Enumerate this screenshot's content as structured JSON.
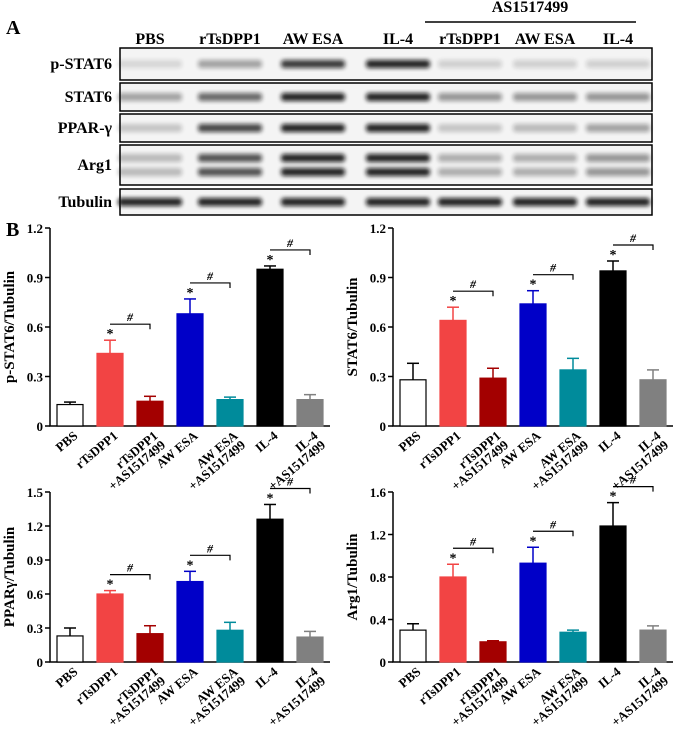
{
  "blot": {
    "panel_label": "A",
    "group_label": "AS1517499",
    "lanes": [
      "PBS",
      "rTsDPP1",
      "AW ESA",
      "IL-4",
      "rTsDPP1",
      "AW ESA",
      "IL-4"
    ],
    "rows": [
      "p-STAT6",
      "STAT6",
      "PPAR-γ",
      "Arg1",
      "Tubulin"
    ]
  },
  "panel_b_label": "B",
  "chart_data": [
    {
      "type": "bar",
      "y_label": "p-STAT6/Tubulin",
      "categories": [
        [
          "PBS"
        ],
        [
          "rTsDPP1"
        ],
        [
          "rTsDPP1",
          "+AS1517499"
        ],
        [
          "AW ESA"
        ],
        [
          "AW ESA",
          "+AS1517499"
        ],
        [
          "IL-4"
        ],
        [
          "IL-4",
          "+AS1517499"
        ]
      ],
      "values": [
        0.13,
        0.44,
        0.15,
        0.68,
        0.16,
        0.95,
        0.16
      ],
      "errors": [
        0.015,
        0.08,
        0.03,
        0.09,
        0.015,
        0.02,
        0.03
      ],
      "colors": [
        "#ffffff",
        "#f24444",
        "#a30000",
        "#0000c8",
        "#008b9b",
        "#000000",
        "#808080"
      ],
      "annotations": [
        null,
        "*",
        null,
        "*",
        null,
        "*",
        null
      ],
      "bracket_labels": [
        null,
        null,
        "#",
        null,
        "#",
        null,
        "#"
      ],
      "ylim": [
        0,
        1.2
      ],
      "yticks": [
        0,
        0.3,
        0.6,
        0.9,
        1.2
      ]
    },
    {
      "type": "bar",
      "y_label": "STAT6/Tubulin",
      "categories": [
        [
          "PBS"
        ],
        [
          "rTsDPP1"
        ],
        [
          "rTsDPP1",
          "+AS1517499"
        ],
        [
          "AW ESA"
        ],
        [
          "AW ESA",
          "+AS1517499"
        ],
        [
          "IL-4"
        ],
        [
          "IL-4",
          "+AS1517499"
        ]
      ],
      "values": [
        0.28,
        0.64,
        0.29,
        0.74,
        0.34,
        0.94,
        0.28
      ],
      "errors": [
        0.1,
        0.08,
        0.06,
        0.08,
        0.07,
        0.06,
        0.06
      ],
      "colors": [
        "#ffffff",
        "#f24444",
        "#a30000",
        "#0000c8",
        "#008b9b",
        "#000000",
        "#808080"
      ],
      "annotations": [
        null,
        "*",
        null,
        "*",
        null,
        "*",
        null
      ],
      "bracket_labels": [
        null,
        null,
        "#",
        null,
        "#",
        null,
        "#"
      ],
      "ylim": [
        0,
        1.2
      ],
      "yticks": [
        0,
        0.3,
        0.6,
        0.9,
        1.2
      ]
    },
    {
      "type": "bar",
      "y_label": "PPARγ/Tubulin",
      "categories": [
        [
          "PBS"
        ],
        [
          "rTsDPP1"
        ],
        [
          "rTsDPP1",
          "+AS1517499"
        ],
        [
          "AW ESA"
        ],
        [
          "AW ESA",
          "+AS1517499"
        ],
        [
          "IL-4"
        ],
        [
          "IL-4",
          "+AS1517499"
        ]
      ],
      "values": [
        0.23,
        0.6,
        0.25,
        0.71,
        0.28,
        1.26,
        0.22
      ],
      "errors": [
        0.07,
        0.03,
        0.07,
        0.09,
        0.07,
        0.13,
        0.05
      ],
      "colors": [
        "#ffffff",
        "#f24444",
        "#a30000",
        "#0000c8",
        "#008b9b",
        "#000000",
        "#808080"
      ],
      "annotations": [
        null,
        "*",
        null,
        "*",
        null,
        "*",
        null
      ],
      "bracket_labels": [
        null,
        null,
        "#",
        null,
        "#",
        null,
        "#"
      ],
      "ylim": [
        0,
        1.5
      ],
      "yticks": [
        0,
        0.3,
        0.6,
        0.9,
        1.2,
        1.5
      ]
    },
    {
      "type": "bar",
      "y_label": "Arg1/Tubulin",
      "categories": [
        [
          "PBS"
        ],
        [
          "rTsDPP1"
        ],
        [
          "rTsDPP1",
          "+AS1517499"
        ],
        [
          "AW ESA"
        ],
        [
          "AW ESA",
          "+AS1517499"
        ],
        [
          "IL-4"
        ],
        [
          "IL-4",
          "+AS1517499"
        ]
      ],
      "values": [
        0.3,
        0.8,
        0.19,
        0.93,
        0.28,
        1.28,
        0.3
      ],
      "errors": [
        0.06,
        0.12,
        0.01,
        0.15,
        0.02,
        0.22,
        0.04
      ],
      "colors": [
        "#ffffff",
        "#f24444",
        "#a30000",
        "#0000c8",
        "#008b9b",
        "#000000",
        "#808080"
      ],
      "annotations": [
        null,
        "*",
        null,
        "*",
        null,
        "*",
        null
      ],
      "bracket_labels": [
        null,
        null,
        "#",
        null,
        "#",
        null,
        "#"
      ],
      "ylim": [
        0,
        1.6
      ],
      "yticks": [
        0,
        0.4,
        0.8,
        1.2,
        1.6
      ]
    }
  ]
}
